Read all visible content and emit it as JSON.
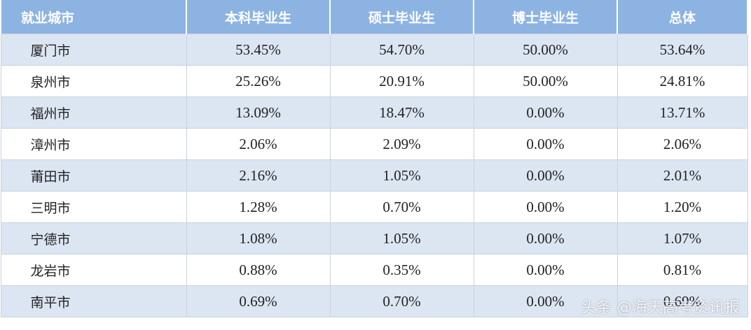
{
  "table": {
    "columns": [
      "就业城市",
      "本科毕业生",
      "硕士毕业生",
      "博士毕业生",
      "总体"
    ],
    "rows": [
      [
        "厦门市",
        "53.45%",
        "54.70%",
        "50.00%",
        "53.64%"
      ],
      [
        "泉州市",
        "25.26%",
        "20.91%",
        "50.00%",
        "24.81%"
      ],
      [
        "福州市",
        "13.09%",
        "18.47%",
        "0.00%",
        "13.71%"
      ],
      [
        "漳州市",
        "2.06%",
        "2.09%",
        "0.00%",
        "2.06%"
      ],
      [
        "莆田市",
        "2.16%",
        "1.05%",
        "0.00%",
        "2.01%"
      ],
      [
        "三明市",
        "1.28%",
        "0.70%",
        "0.00%",
        "1.20%"
      ],
      [
        "宁德市",
        "1.08%",
        "1.05%",
        "0.00%",
        "1.07%"
      ],
      [
        "龙岩市",
        "0.88%",
        "0.35%",
        "0.00%",
        "0.81%"
      ],
      [
        "南平市",
        "0.69%",
        "0.70%",
        "0.00%",
        "0.69%"
      ]
    ]
  },
  "watermark": "头条 @海天高考资讯报"
}
